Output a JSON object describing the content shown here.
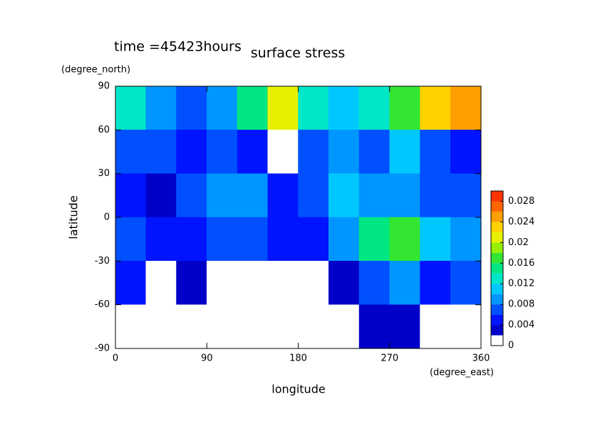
{
  "chart_data": {
    "type": "contour",
    "title": "surface stress",
    "subtitle": "time =45423hours",
    "xlabel": "longitude",
    "ylabel": "latitude",
    "xunits": "(degree_east)",
    "yunits": "(degree_north)",
    "xlim": [
      0,
      360
    ],
    "ylim": [
      -90,
      90
    ],
    "xticks": [
      0,
      90,
      180,
      270,
      360
    ],
    "yticks": [
      -90,
      -60,
      -30,
      0,
      30,
      60,
      90
    ],
    "xbins": [
      0,
      30,
      60,
      90,
      120,
      150,
      180,
      210,
      240,
      270,
      300,
      330,
      360
    ],
    "ybins": [
      90,
      60,
      30,
      0,
      -30,
      -60,
      -90
    ],
    "z": [
      [
        0.012,
        0.008,
        0.006,
        0.008,
        0.014,
        0.02,
        0.012,
        0.01,
        0.012,
        0.016,
        0.022,
        0.024
      ],
      [
        0.006,
        0.006,
        0.004,
        0.006,
        0.004,
        0.001,
        0.006,
        0.008,
        0.006,
        0.01,
        0.006,
        0.004
      ],
      [
        0.004,
        0.002,
        0.006,
        0.008,
        0.008,
        0.004,
        0.006,
        0.01,
        0.008,
        0.008,
        0.006,
        0.006
      ],
      [
        0.006,
        0.004,
        0.004,
        0.006,
        0.006,
        0.004,
        0.004,
        0.008,
        0.014,
        0.016,
        0.01,
        0.008
      ],
      [
        0.004,
        0.001,
        0.003,
        0.001,
        0,
        0,
        0,
        0.003,
        0.006,
        0.008,
        0.004,
        0.006
      ],
      [
        0,
        0,
        0,
        0,
        0,
        0,
        0,
        0,
        0.003,
        0.003,
        0,
        0
      ]
    ],
    "clim": [
      0,
      0.03
    ],
    "cticks": [
      0,
      0.004,
      0.008,
      0.012,
      0.016,
      0.02,
      0.024,
      0.028
    ],
    "colors": [
      "#ffffff",
      "#0000c8",
      "#0014ff",
      "#0050ff",
      "#0096ff",
      "#00c8ff",
      "#00e6c8",
      "#00e682",
      "#32e632",
      "#96f000",
      "#e6f000",
      "#ffd200",
      "#ffa000",
      "#ff6400",
      "#ff3200"
    ]
  }
}
